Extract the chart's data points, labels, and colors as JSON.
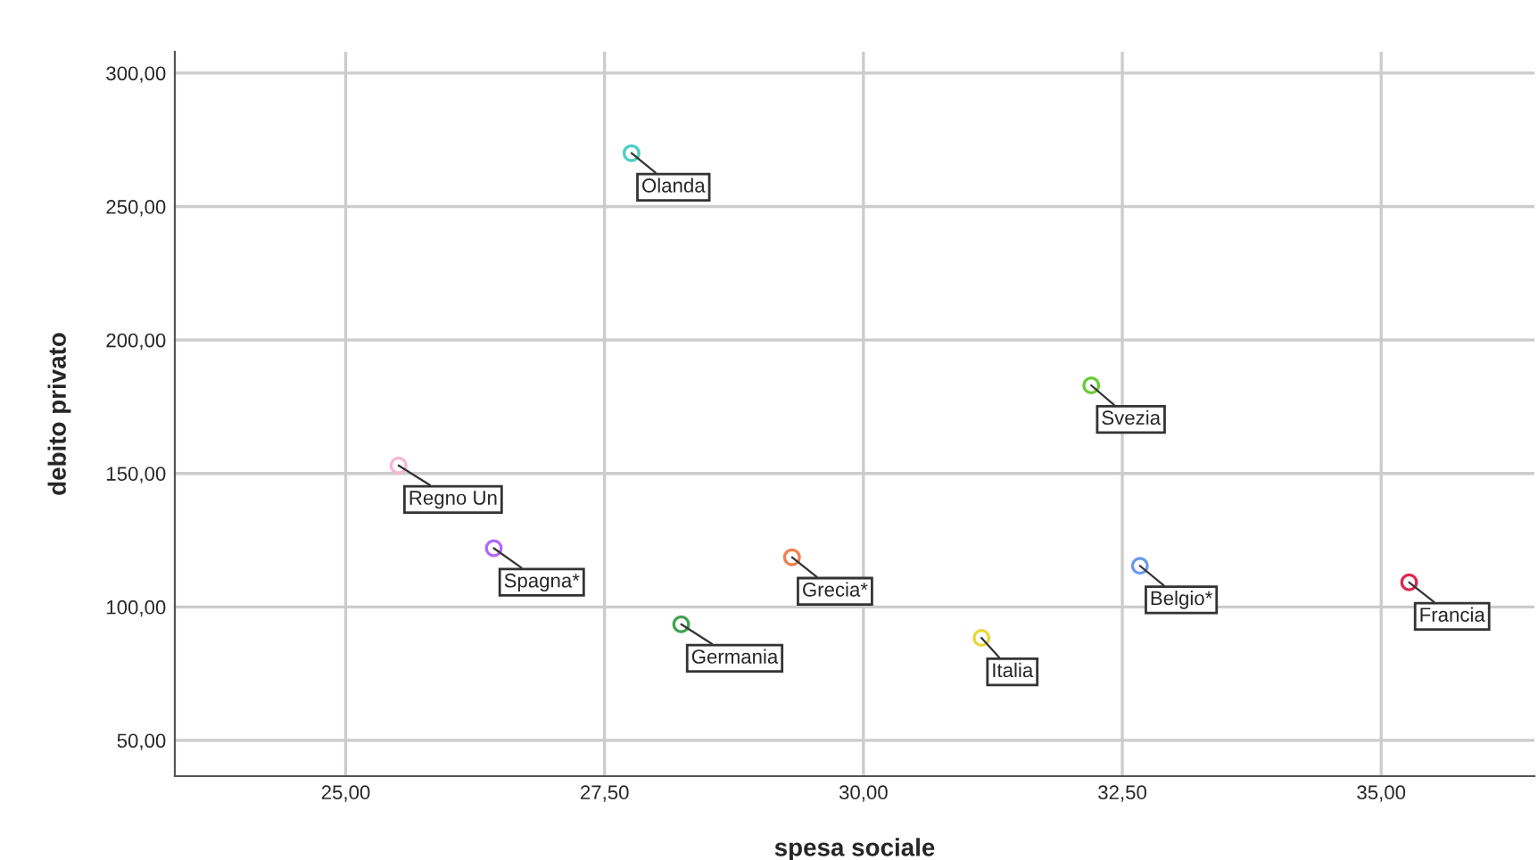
{
  "chart_data": {
    "type": "scatter",
    "xlabel": "spesa sociale",
    "ylabel": "debito privato",
    "x": [
      27.76,
      25.51,
      26.43,
      28.24,
      29.31,
      32.2,
      32.67,
      31.14,
      35.27
    ],
    "values": [
      270,
      153,
      122,
      93.5,
      118.6,
      183,
      115.4,
      88.4,
      109.2
    ],
    "colors": [
      "#4ecdc4",
      "#f7b6d2",
      "#b266ff",
      "#3fa34d",
      "#f08050",
      "#66cc33",
      "#6699ee",
      "#e6d83a",
      "#e0284a"
    ],
    "annotations": [
      {
        "text": "Olanda",
        "x": 27.76,
        "y": 270
      },
      {
        "text": "Regno Un",
        "x": 25.51,
        "y": 153
      },
      {
        "text": "Spagna*",
        "x": 26.43,
        "y": 122
      },
      {
        "text": "Germania",
        "x": 28.24,
        "y": 93.5
      },
      {
        "text": "Grecia*",
        "x": 29.31,
        "y": 118.6
      },
      {
        "text": "Svezia",
        "x": 32.2,
        "y": 183
      },
      {
        "text": "Belgio*",
        "x": 32.67,
        "y": 115.4
      },
      {
        "text": "Italia",
        "x": 31.14,
        "y": 88.4
      },
      {
        "text": "Francia",
        "x": 35.27,
        "y": 109.2
      }
    ],
    "xlim": [
      23.35,
      36.48
    ],
    "ylim": [
      36.6,
      308
    ],
    "xticks": [
      {
        "value": 25,
        "label": "25,00"
      },
      {
        "value": 27.5,
        "label": "27,50"
      },
      {
        "value": 30,
        "label": "30,00"
      },
      {
        "value": 32.5,
        "label": "32,50"
      },
      {
        "value": 35,
        "label": "35,00"
      }
    ],
    "yticks": [
      {
        "value": 50,
        "label": "50,00"
      },
      {
        "value": 100,
        "label": "100,00"
      },
      {
        "value": 150,
        "label": "150,00"
      },
      {
        "value": 200,
        "label": "200,00"
      },
      {
        "value": 250,
        "label": "250,00"
      },
      {
        "value": 300,
        "label": "300,00"
      }
    ],
    "grid": true,
    "marker": "circle",
    "legend": false
  }
}
